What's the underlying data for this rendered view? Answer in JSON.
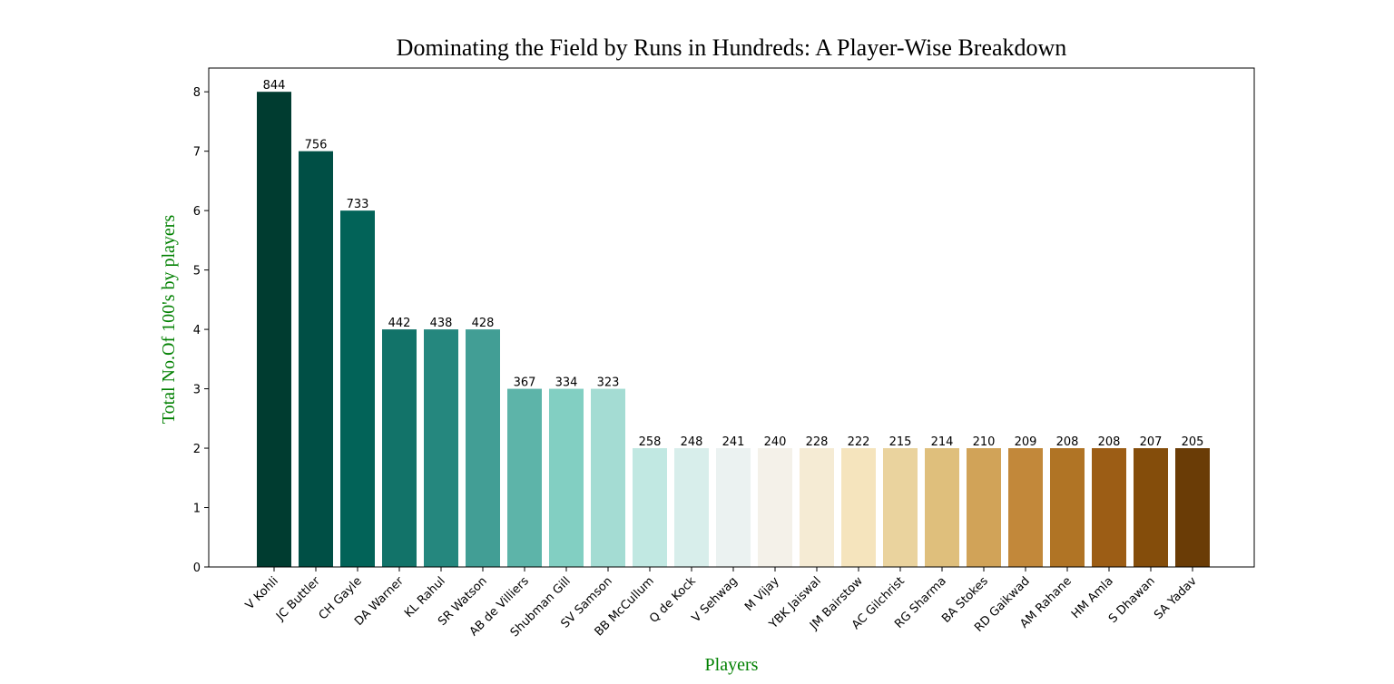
{
  "chart_data": {
    "type": "bar",
    "title": "Dominating the Field by Runs in Hundreds: A Player-Wise Breakdown",
    "xlabel": "Players",
    "ylabel": "Total No.Of 100's by players",
    "axis_label_color": "#008000",
    "ylim": [
      0,
      8.4
    ],
    "yticks": [
      0,
      1,
      2,
      3,
      4,
      5,
      6,
      7,
      8
    ],
    "grid": false,
    "categories": [
      "V Kohli",
      "JC Buttler",
      "CH Gayle",
      "DA Warner",
      "KL Rahul",
      "SR Watson",
      "AB de Villiers",
      "Shubman Gill",
      "SV Samson",
      "BB McCullum",
      "Q de Kock",
      "V Sehwag",
      "M Vijay",
      "YBK Jaiswal",
      "JM Bairstow",
      "AC Gilchrist",
      "RG Sharma",
      "BA Stokes",
      "RD Gaikwad",
      "AM Rahane",
      "HM Amla",
      "S Dhawan",
      "SA Yadav"
    ],
    "values": [
      8,
      7,
      6,
      4,
      4,
      4,
      3,
      3,
      3,
      2,
      2,
      2,
      2,
      2,
      2,
      2,
      2,
      2,
      2,
      2,
      2,
      2,
      2
    ],
    "bar_labels": [
      "844",
      "756",
      "733",
      "442",
      "438",
      "428",
      "367",
      "334",
      "323",
      "258",
      "248",
      "241",
      "240",
      "228",
      "222",
      "215",
      "214",
      "210",
      "209",
      "208",
      "208",
      "207",
      "205"
    ],
    "colors": [
      "#003c30",
      "#004f45",
      "#026358",
      "#127369",
      "#25877e",
      "#429e95",
      "#5db4a9",
      "#82cfc2",
      "#a4dcd3",
      "#c1e8e2",
      "#d8eeeb",
      "#ebf2f1",
      "#f4f1e9",
      "#f5ebd4",
      "#f5e4bd",
      "#ead39e",
      "#dfbf7c",
      "#d1a358",
      "#c2883a",
      "#b07425",
      "#9c5d15",
      "#844d0b",
      "#6a3c06"
    ]
  }
}
